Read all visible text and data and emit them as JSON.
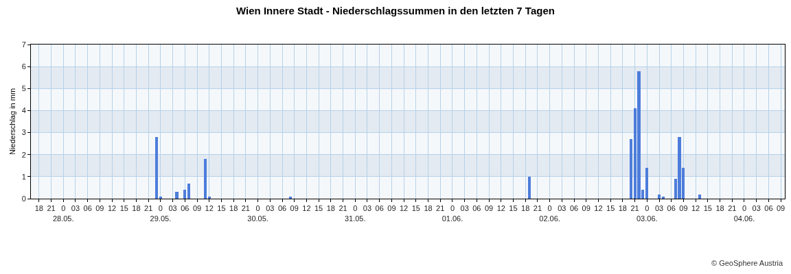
{
  "chart_data": {
    "type": "bar",
    "title": "Wien Innere Stadt - Niederschlagssummen in den letzten 7 Tagen",
    "ylabel": "Niederschlag in mm",
    "x": [
      "--05-28T23:00",
      "--05-29T00:00",
      "--05-29T04:00",
      "--05-29T06:00",
      "--05-29T07:00",
      "--05-29T11:00",
      "--05-29T12:00",
      "--05-30T08:00",
      "--06-01T19:00",
      "--06-02T20:00",
      "--06-02T21:00",
      "--06-02T22:00",
      "--06-02T23:00",
      "--06-03T00:00",
      "--06-03T03:00",
      "--06-03T04:00",
      "--06-03T07:00",
      "--06-03T08:00",
      "--06-03T09:00",
      "--06-03T13:00"
    ],
    "values": [
      2.8,
      0.1,
      0.3,
      0.4,
      0.7,
      1.8,
      0.1,
      0.1,
      1.0,
      2.7,
      4.1,
      5.8,
      0.4,
      1.4,
      0.2,
      0.1,
      0.9,
      2.8,
      1.4,
      0.2
    ],
    "color": "#4d7ddb",
    "ylim": [
      0,
      7
    ],
    "yticks": [
      0,
      1,
      2,
      3,
      4,
      5,
      6,
      7
    ],
    "xlim": [
      "--05-27T16:00",
      "--06-04T10:00"
    ],
    "xticks": [
      {
        "value": "--05-27T18:00",
        "label": "18"
      },
      {
        "value": "--05-27T21:00",
        "label": "21"
      },
      {
        "value": "--05-28T00:00",
        "label": "0\n28.05."
      },
      {
        "value": "--05-28T03:00",
        "label": "03"
      },
      {
        "value": "--05-28T06:00",
        "label": "06"
      },
      {
        "value": "--05-28T09:00",
        "label": "09"
      },
      {
        "value": "--05-28T12:00",
        "label": "12"
      },
      {
        "value": "--05-28T15:00",
        "label": "15"
      },
      {
        "value": "--05-28T18:00",
        "label": "18"
      },
      {
        "value": "--05-28T21:00",
        "label": "21"
      },
      {
        "value": "--05-29T00:00",
        "label": "0\n29.05."
      },
      {
        "value": "--05-29T03:00",
        "label": "03"
      },
      {
        "value": "--05-29T06:00",
        "label": "06"
      },
      {
        "value": "--05-29T09:00",
        "label": "09"
      },
      {
        "value": "--05-29T12:00",
        "label": "12"
      },
      {
        "value": "--05-29T15:00",
        "label": "15"
      },
      {
        "value": "--05-29T18:00",
        "label": "18"
      },
      {
        "value": "--05-29T21:00",
        "label": "21"
      },
      {
        "value": "--05-30T00:00",
        "label": "0\n30.05."
      },
      {
        "value": "--05-30T03:00",
        "label": "03"
      },
      {
        "value": "--05-30T06:00",
        "label": "06"
      },
      {
        "value": "--05-30T09:00",
        "label": "09"
      },
      {
        "value": "--05-30T12:00",
        "label": "12"
      },
      {
        "value": "--05-30T15:00",
        "label": "15"
      },
      {
        "value": "--05-30T18:00",
        "label": "18"
      },
      {
        "value": "--05-30T21:00",
        "label": "21"
      },
      {
        "value": "--05-31T00:00",
        "label": "0\n31.05."
      },
      {
        "value": "--05-31T03:00",
        "label": "03"
      },
      {
        "value": "--05-31T06:00",
        "label": "06"
      },
      {
        "value": "--05-31T09:00",
        "label": "09"
      },
      {
        "value": "--05-31T12:00",
        "label": "12"
      },
      {
        "value": "--05-31T15:00",
        "label": "15"
      },
      {
        "value": "--05-31T18:00",
        "label": "18"
      },
      {
        "value": "--05-31T21:00",
        "label": "21"
      },
      {
        "value": "--06-01T00:00",
        "label": "0\n01.06."
      },
      {
        "value": "--06-01T03:00",
        "label": "03"
      },
      {
        "value": "--06-01T06:00",
        "label": "06"
      },
      {
        "value": "--06-01T09:00",
        "label": "09"
      },
      {
        "value": "--06-01T12:00",
        "label": "12"
      },
      {
        "value": "--06-01T15:00",
        "label": "15"
      },
      {
        "value": "--06-01T18:00",
        "label": "18"
      },
      {
        "value": "--06-01T21:00",
        "label": "21"
      },
      {
        "value": "--06-02T00:00",
        "label": "0\n02.06."
      },
      {
        "value": "--06-02T03:00",
        "label": "03"
      },
      {
        "value": "--06-02T06:00",
        "label": "06"
      },
      {
        "value": "--06-02T09:00",
        "label": "09"
      },
      {
        "value": "--06-02T12:00",
        "label": "12"
      },
      {
        "value": "--06-02T15:00",
        "label": "15"
      },
      {
        "value": "--06-02T18:00",
        "label": "18"
      },
      {
        "value": "--06-02T21:00",
        "label": "21"
      },
      {
        "value": "--06-03T00:00",
        "label": "0\n03.06."
      },
      {
        "value": "--06-03T03:00",
        "label": "03"
      },
      {
        "value": "--06-03T06:00",
        "label": "06"
      },
      {
        "value": "--06-03T09:00",
        "label": "09"
      },
      {
        "value": "--06-03T12:00",
        "label": "12"
      },
      {
        "value": "--06-03T15:00",
        "label": "15"
      },
      {
        "value": "--06-03T18:00",
        "label": "18"
      },
      {
        "value": "--06-03T21:00",
        "label": "21"
      },
      {
        "value": "--06-04T00:00",
        "label": "0\n04.06."
      },
      {
        "value": "--06-04T03:00",
        "label": "03"
      },
      {
        "value": "--06-04T06:00",
        "label": "06"
      },
      {
        "value": "--06-04T09:00",
        "label": "09"
      }
    ],
    "bands": [
      {
        "axis": "y",
        "from": 1,
        "to": 2,
        "color": "#e4eaf2"
      },
      {
        "axis": "y",
        "from": 3,
        "to": 4,
        "color": "#e4eaf2"
      },
      {
        "axis": "y",
        "from": 5,
        "to": 6,
        "color": "#e4eaf2"
      }
    ],
    "grid": true,
    "legend": false,
    "annotations": [
      "© GeoSphere Austria"
    ]
  }
}
